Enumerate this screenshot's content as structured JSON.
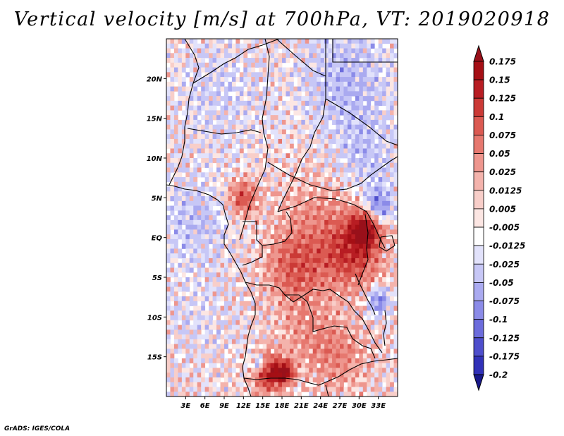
{
  "chart_data": {
    "type": "heatmap",
    "title": "Vertical velocity [m/s] at 700hPa, VT: 2019020918",
    "variable": "Vertical velocity",
    "units": "m/s",
    "level": "700hPa",
    "valid_time": "2019020918",
    "lon_range": [
      0,
      36
    ],
    "lat_range": [
      -20,
      25
    ],
    "x_ticks": [
      {
        "value": 3,
        "label": "3E"
      },
      {
        "value": 6,
        "label": "6E"
      },
      {
        "value": 9,
        "label": "9E"
      },
      {
        "value": 12,
        "label": "12E"
      },
      {
        "value": 15,
        "label": "15E"
      },
      {
        "value": 18,
        "label": "18E"
      },
      {
        "value": 21,
        "label": "21E"
      },
      {
        "value": 24,
        "label": "24E"
      },
      {
        "value": 27,
        "label": "27E"
      },
      {
        "value": 30,
        "label": "30E"
      },
      {
        "value": 33,
        "label": "33E"
      }
    ],
    "y_ticks": [
      {
        "value": 20,
        "label": "20N"
      },
      {
        "value": 15,
        "label": "15N"
      },
      {
        "value": 10,
        "label": "10N"
      },
      {
        "value": 5,
        "label": "5N"
      },
      {
        "value": 0,
        "label": "EQ"
      },
      {
        "value": -5,
        "label": "5S"
      },
      {
        "value": -10,
        "label": "10S"
      },
      {
        "value": -15,
        "label": "15S"
      }
    ],
    "colorbar": {
      "levels": [
        {
          "label": "0.175",
          "color": "#a50f15"
        },
        {
          "label": "0.15",
          "color": "#b81d23"
        },
        {
          "label": "0.125",
          "color": "#cb3a36"
        },
        {
          "label": "0.1",
          "color": "#db5a52"
        },
        {
          "label": "0.075",
          "color": "#e6786f"
        },
        {
          "label": "0.05",
          "color": "#ee968e"
        },
        {
          "label": "0.025",
          "color": "#f4b3ac"
        },
        {
          "label": "0.0125",
          "color": "#f8cec9"
        },
        {
          "label": "0.005",
          "color": "#fce6e3"
        },
        {
          "label": "-0.005",
          "color": "#ffffff"
        },
        {
          "label": "-0.0125",
          "color": "#e2e2fb"
        },
        {
          "label": "-0.025",
          "color": "#c7c7f6"
        },
        {
          "label": "-0.05",
          "color": "#aaaaf0"
        },
        {
          "label": "-0.075",
          "color": "#8b8be8"
        },
        {
          "label": "-0.1",
          "color": "#6c6cdc"
        },
        {
          "label": "-0.125",
          "color": "#4e4ecc"
        },
        {
          "label": "-0.175",
          "color": "#3131b8"
        },
        {
          "label": "-0.2",
          "color": "#1f1f9c"
        }
      ],
      "over_color": "#99101a",
      "under_color": "#18188a"
    },
    "field_features": [
      {
        "lon": 16,
        "lat": -17,
        "value": 0.15,
        "sigma": 1.6
      },
      {
        "lon": 18.5,
        "lat": -17,
        "value": 0.17,
        "sigma": 0.9
      },
      {
        "lon": 14.5,
        "lat": -16,
        "value": -0.1,
        "sigma": 0.8
      },
      {
        "lon": 29,
        "lat": -2,
        "value": 0.1,
        "sigma": 3.0
      },
      {
        "lon": 31,
        "lat": 1,
        "value": 0.15,
        "sigma": 1.6
      },
      {
        "lon": 33,
        "lat": 4,
        "value": -0.1,
        "sigma": 1.5
      },
      {
        "lon": 24,
        "lat": 1,
        "value": 0.05,
        "sigma": 4.5
      },
      {
        "lon": 20,
        "lat": -4,
        "value": 0.075,
        "sigma": 3.0
      },
      {
        "lon": 12,
        "lat": 5,
        "value": 0.1,
        "sigma": 1.5
      },
      {
        "lon": 33,
        "lat": -8,
        "value": -0.1,
        "sigma": 1.2
      },
      {
        "lon": 27,
        "lat": -15,
        "value": 0.05,
        "sigma": 3.0
      },
      {
        "lon": 22,
        "lat": -12,
        "value": 0.04,
        "sigma": 3.0
      },
      {
        "lon": 28,
        "lat": 20,
        "value": -0.05,
        "sigma": 5.0
      },
      {
        "lon": 8,
        "lat": 18,
        "value": -0.03,
        "sigma": 5.0
      },
      {
        "lon": 4,
        "lat": 2,
        "value": -0.04,
        "sigma": 4.0
      },
      {
        "lon": 5,
        "lat": -10,
        "value": -0.02,
        "sigma": 4.0
      },
      {
        "lon": 31,
        "lat": 10,
        "value": -0.04,
        "sigma": 3.5
      }
    ]
  },
  "footer": "GrADS: IGES/COLA"
}
